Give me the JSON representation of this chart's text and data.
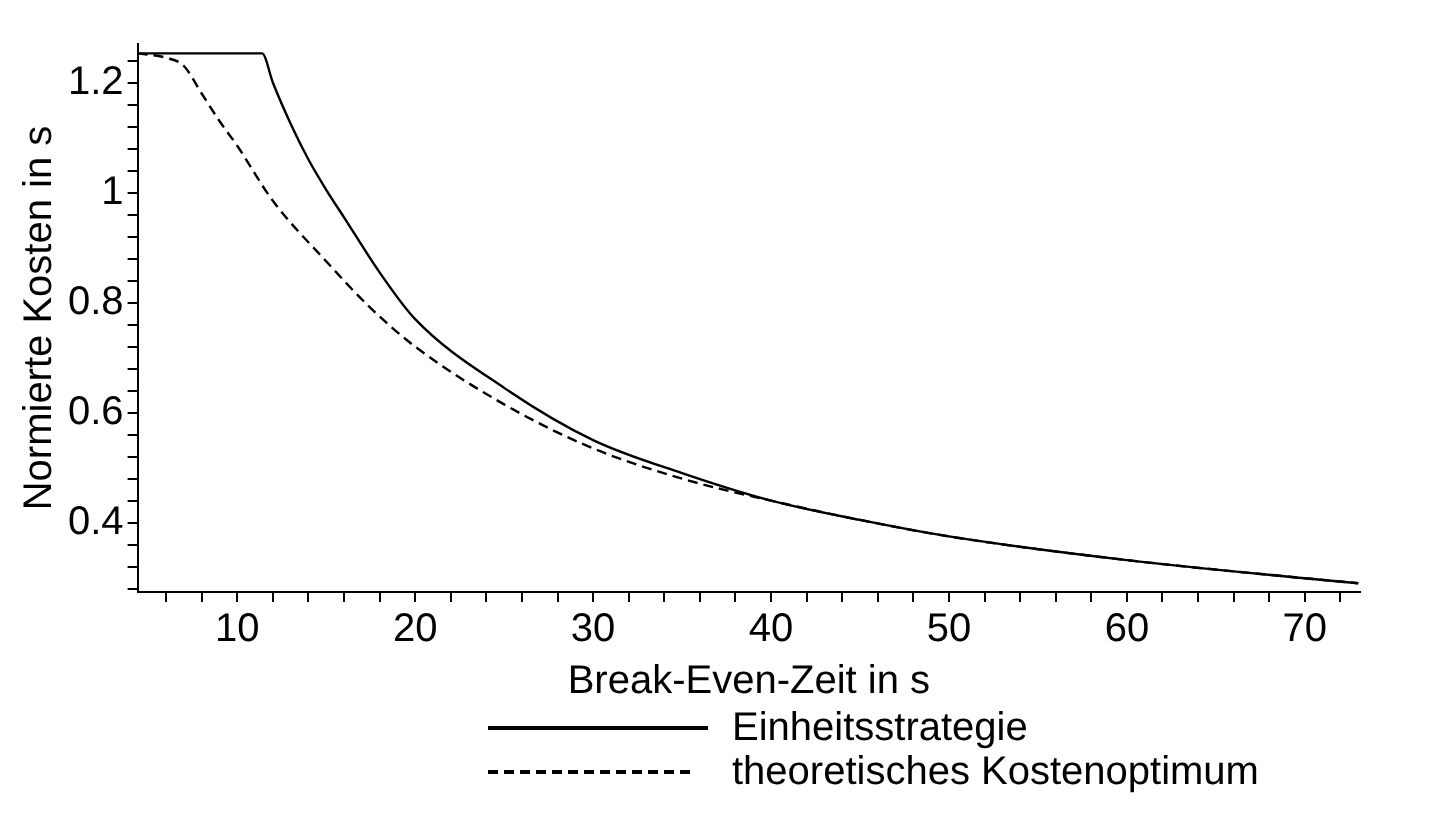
{
  "chart_data": {
    "type": "line",
    "xlabel": "Break-Even-Zeit in s",
    "ylabel": "Normierte Kosten in s",
    "xlim": [
      4.4,
      73.1
    ],
    "ylim": [
      0.274,
      1.27
    ],
    "xticks": [
      {
        "value": 6,
        "label": null
      },
      {
        "value": 8,
        "label": null
      },
      10,
      {
        "value": 12,
        "label": null
      },
      {
        "value": 14,
        "label": null
      },
      {
        "value": 16,
        "label": null
      },
      {
        "value": 18,
        "label": null
      },
      20,
      {
        "value": 22,
        "label": null
      },
      {
        "value": 24,
        "label": null
      },
      {
        "value": 26,
        "label": null
      },
      {
        "value": 28,
        "label": null
      },
      30,
      {
        "value": 32,
        "label": null
      },
      {
        "value": 34,
        "label": null
      },
      {
        "value": 36,
        "label": null
      },
      {
        "value": 38,
        "label": null
      },
      40,
      {
        "value": 42,
        "label": null
      },
      {
        "value": 44,
        "label": null
      },
      {
        "value": 46,
        "label": null
      },
      {
        "value": 48,
        "label": null
      },
      50,
      {
        "value": 52,
        "label": null
      },
      {
        "value": 54,
        "label": null
      },
      {
        "value": 56,
        "label": null
      },
      {
        "value": 58,
        "label": null
      },
      60,
      {
        "value": 62,
        "label": null
      },
      {
        "value": 64,
        "label": null
      },
      {
        "value": 66,
        "label": null
      },
      {
        "value": 68,
        "label": null
      },
      70,
      {
        "value": 72,
        "label": null
      }
    ],
    "yticks": [
      {
        "value": 0.28,
        "label": null
      },
      {
        "value": 0.32,
        "label": null
      },
      {
        "value": 0.36,
        "label": null
      },
      0.4,
      {
        "value": 0.44,
        "label": null
      },
      {
        "value": 0.48,
        "label": null
      },
      {
        "value": 0.52,
        "label": null
      },
      {
        "value": 0.56,
        "label": null
      },
      0.6,
      {
        "value": 0.64,
        "label": null
      },
      {
        "value": 0.68,
        "label": null
      },
      {
        "value": 0.72,
        "label": null
      },
      {
        "value": 0.76,
        "label": null
      },
      0.8,
      {
        "value": 0.84,
        "label": null
      },
      {
        "value": 0.88,
        "label": null
      },
      {
        "value": 0.92,
        "label": null
      },
      {
        "value": 0.96,
        "label": null
      },
      1,
      {
        "value": 1.04,
        "label": null
      },
      {
        "value": 1.08,
        "label": null
      },
      {
        "value": 1.12,
        "label": null
      },
      {
        "value": 1.16,
        "label": null
      },
      1.2,
      {
        "value": 1.24,
        "label": null
      }
    ],
    "grid": false,
    "legend": "bottom",
    "marker": "none",
    "series": [
      {
        "name": "Einheitsstrategie",
        "color": "#000000",
        "line_style": "solid",
        "x": [
          4.4,
          11.4,
          12,
          13,
          14,
          15,
          16,
          18,
          20,
          25,
          30,
          35,
          40,
          45,
          50,
          60,
          70,
          73
        ],
        "values": [
          1.253,
          1.253,
          1.2,
          1.125,
          1.06,
          1.005,
          0.955,
          0.855,
          0.77,
          0.645,
          0.55,
          0.49,
          0.44,
          0.405,
          0.375,
          0.332,
          0.299,
          0.29
        ]
      },
      {
        "name": "theoretisches Kostenoptimum",
        "color": "#000000",
        "line_style": "dashed",
        "x": [
          4.4,
          6,
          7,
          8,
          9,
          10,
          12,
          15,
          17.5,
          20,
          25,
          30,
          35,
          40,
          45,
          50,
          60,
          70,
          73
        ],
        "values": [
          1.253,
          1.245,
          1.23,
          1.18,
          1.13,
          1.085,
          0.985,
          0.875,
          0.79,
          0.72,
          0.615,
          0.535,
          0.48,
          0.44,
          0.405,
          0.375,
          0.332,
          0.299,
          0.29
        ]
      }
    ]
  }
}
